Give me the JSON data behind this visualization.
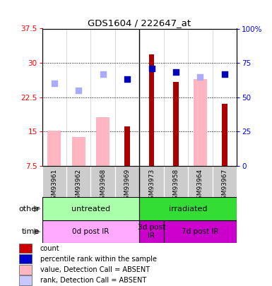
{
  "title": "GDS1604 / 222647_at",
  "samples": [
    "GSM93961",
    "GSM93962",
    "GSM93968",
    "GSM93969",
    "GSM93973",
    "GSM93958",
    "GSM93964",
    "GSM93967"
  ],
  "bar_values_red": [
    null,
    null,
    null,
    16.2,
    31.8,
    25.8,
    null,
    21.0
  ],
  "bar_values_pink": [
    15.2,
    13.8,
    18.2,
    null,
    null,
    null,
    26.5,
    null
  ],
  "dot_blue_dark": [
    null,
    null,
    null,
    26.5,
    28.8,
    28.0,
    null,
    27.5
  ],
  "dot_blue_light": [
    25.5,
    24.0,
    27.5,
    null,
    null,
    null,
    27.0,
    null
  ],
  "ylim_left": [
    7.5,
    37.5
  ],
  "ylim_right": [
    0,
    100
  ],
  "yticks_left": [
    7.5,
    15.0,
    22.5,
    30.0,
    37.5
  ],
  "yticks_right": [
    0,
    25,
    50,
    75,
    100
  ],
  "ytick_labels_left": [
    "7.5",
    "15",
    "22.5",
    "30",
    "37.5"
  ],
  "ytick_labels_right": [
    "0",
    "25",
    "50",
    "75",
    "100%"
  ],
  "group_other": [
    {
      "label": "untreated",
      "start": 0,
      "end": 4,
      "color": "#aaffaa"
    },
    {
      "label": "irradiated",
      "start": 4,
      "end": 8,
      "color": "#33dd33"
    }
  ],
  "group_time": [
    {
      "label": "0d post IR",
      "start": 0,
      "end": 4,
      "color": "#ffaaff"
    },
    {
      "label": "3d post\nIR",
      "start": 4,
      "end": 5,
      "color": "#cc00cc"
    },
    {
      "label": "7d post IR",
      "start": 5,
      "end": 8,
      "color": "#cc00cc"
    }
  ],
  "legend_items": [
    {
      "color": "#cc0000",
      "label": "count"
    },
    {
      "color": "#0000cc",
      "label": "percentile rank within the sample"
    },
    {
      "color": "#ffb6c1",
      "label": "value, Detection Call = ABSENT"
    },
    {
      "color": "#c8c8ff",
      "label": "rank, Detection Call = ABSENT"
    }
  ],
  "pink_bar_width": 0.55,
  "red_bar_width": 0.22,
  "dot_size": 35,
  "grid_lines": [
    15.0,
    22.5,
    30.0
  ],
  "col_sep_color": "#cccccc",
  "gray_bg": "#cccccc",
  "main_sep_col": 4
}
